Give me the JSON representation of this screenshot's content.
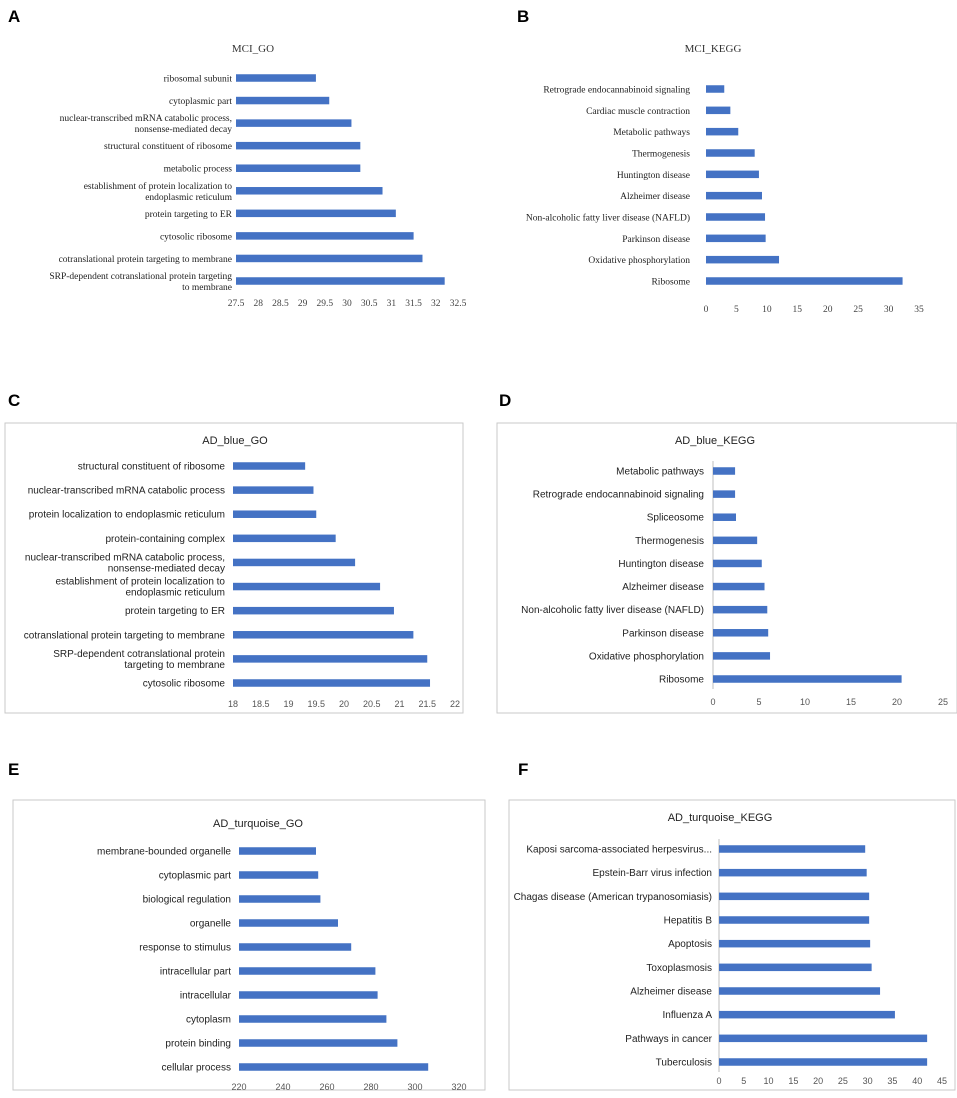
{
  "panels": [
    "A",
    "B",
    "C",
    "D",
    "E",
    "F"
  ],
  "chart_data": [
    {
      "panel": "A",
      "type": "bar",
      "orientation": "horizontal",
      "title": "MCI_GO",
      "categories": [
        "ribosomal subunit",
        "cytoplasmic part",
        "nuclear-transcribed mRNA catabolic process, nonsense-mediated decay",
        "structural constituent of ribosome",
        "metabolic process",
        "establishment of protein localization to endoplasmic reticulum",
        "protein targeting to ER",
        "cytosolic ribosome",
        "cotranslational protein targeting to membrane",
        "SRP-dependent cotranslational protein targeting to membrane"
      ],
      "values": [
        29.3,
        29.6,
        30.1,
        30.3,
        30.3,
        30.8,
        31.1,
        31.5,
        31.7,
        32.2
      ],
      "xlim": [
        27.5,
        32.5
      ],
      "ticks": [
        "27.5",
        "28",
        "28.5",
        "29",
        "29.5",
        "30",
        "30.5",
        "31",
        "31.5",
        "32",
        "32.5"
      ],
      "framed": false
    },
    {
      "panel": "B",
      "type": "bar",
      "orientation": "horizontal",
      "title": "MCI_KEGG",
      "categories": [
        "Retrograde endocannabinoid signaling",
        "Cardiac muscle contraction",
        "Metabolic pathways",
        "Thermogenesis",
        "Huntington disease",
        "Alzheimer disease",
        "Non-alcoholic fatty liver disease (NAFLD)",
        "Parkinson disease",
        "Oxidative phosphorylation",
        "Ribosome"
      ],
      "values": [
        3,
        4,
        5.3,
        8,
        8.7,
        9.2,
        9.7,
        9.8,
        12,
        32.3
      ],
      "xlim": [
        0,
        35
      ],
      "ticks": [
        "0",
        "5",
        "10",
        "15",
        "20",
        "25",
        "30",
        "35"
      ],
      "framed": false
    },
    {
      "panel": "C",
      "type": "bar",
      "orientation": "horizontal",
      "title": "AD_blue_GO",
      "categories": [
        "structural constituent of ribosome",
        "nuclear-transcribed mRNA catabolic process",
        "protein localization to endoplasmic reticulum",
        "protein-containing complex",
        "nuclear-transcribed mRNA catabolic process, nonsense-mediated decay",
        "establishment of protein localization to endoplasmic reticulum",
        "protein targeting to ER",
        "cotranslational protein targeting to membrane",
        "SRP-dependent cotranslational protein targeting to membrane",
        "cytosolic ribosome"
      ],
      "values": [
        19.3,
        19.45,
        19.5,
        19.85,
        20.2,
        20.65,
        20.9,
        21.25,
        21.5,
        21.55
      ],
      "xlim": [
        18,
        22
      ],
      "ticks": [
        "18",
        "18.5",
        "19",
        "19.5",
        "20",
        "20.5",
        "21",
        "21.5",
        "22"
      ],
      "framed": true
    },
    {
      "panel": "D",
      "type": "bar",
      "orientation": "horizontal",
      "title": "AD_blue_KEGG",
      "categories": [
        "Metabolic pathways",
        "Retrograde endocannabinoid signaling",
        "Spliceosome",
        "Thermogenesis",
        "Huntington disease",
        "Alzheimer disease",
        "Non-alcoholic fatty liver disease (NAFLD)",
        "Parkinson disease",
        "Oxidative phosphorylation",
        "Ribosome"
      ],
      "values": [
        2.4,
        2.4,
        2.5,
        4.8,
        5.3,
        5.6,
        5.9,
        6,
        6.2,
        20.5
      ],
      "xlim": [
        0,
        25
      ],
      "ticks": [
        "0",
        "5",
        "10",
        "15",
        "20",
        "25"
      ],
      "framed": true
    },
    {
      "panel": "E",
      "type": "bar",
      "orientation": "horizontal",
      "title": "AD_turquoise_GO",
      "categories": [
        "membrane-bounded organelle",
        "cytoplasmic part",
        "biological regulation",
        "organelle",
        "response to stimulus",
        "intracellular part",
        "intracellular",
        "cytoplasm",
        "protein binding",
        "cellular process"
      ],
      "values": [
        255,
        256,
        257,
        265,
        271,
        282,
        283,
        287,
        292,
        306
      ],
      "xlim": [
        220,
        320
      ],
      "ticks": [
        "220",
        "240",
        "260",
        "280",
        "300",
        "320"
      ],
      "framed": true
    },
    {
      "panel": "F",
      "type": "bar",
      "orientation": "horizontal",
      "title": "AD_turquoise_KEGG",
      "categories": [
        "Kaposi sarcoma-associated herpesvirus...",
        "Epstein-Barr virus infection",
        "Chagas disease (American trypanosomiasis)",
        "Hepatitis B",
        "Apoptosis",
        "Toxoplasmosis",
        "Alzheimer disease",
        "Influenza A",
        "Pathways in cancer",
        "Tuberculosis"
      ],
      "values": [
        29.5,
        29.8,
        30.3,
        30.3,
        30.5,
        30.8,
        32.5,
        35.5,
        42,
        42
      ],
      "xlim": [
        0,
        45
      ],
      "ticks": [
        "0",
        "5",
        "10",
        "15",
        "20",
        "25",
        "30",
        "35",
        "40",
        "45"
      ],
      "framed": true
    }
  ]
}
